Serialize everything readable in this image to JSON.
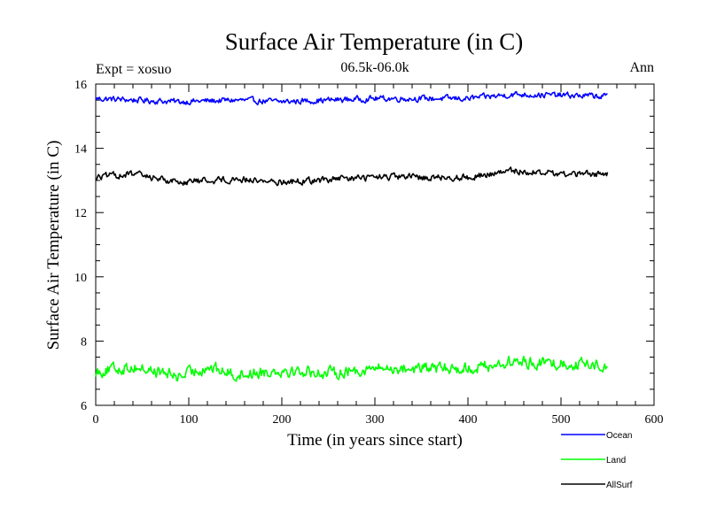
{
  "chart_data": {
    "type": "line",
    "title": "Surface Air Temperature (in C)",
    "subtitle_left": "Expt = xosuo",
    "subtitle_center": "06.5k-06.0k",
    "subtitle_right": "Ann",
    "xlabel": "Time (in years since start)",
    "ylabel": "Surface Air Temperature (in C)",
    "xlim": [
      0,
      600
    ],
    "ylim": [
      6,
      16
    ],
    "xticks": [
      0,
      100,
      200,
      300,
      400,
      500,
      600
    ],
    "yticks": [
      6,
      8,
      10,
      12,
      14,
      16
    ],
    "legend_position": "bottom-right outside",
    "n_years": 550,
    "series": [
      {
        "name": "Ocean",
        "color": "#0000ff",
        "mean": 15.55,
        "noise": 0.09,
        "trend": [
          [
            0,
            15.55
          ],
          [
            90,
            15.45
          ],
          [
            150,
            15.5
          ],
          [
            200,
            15.45
          ],
          [
            300,
            15.55
          ],
          [
            400,
            15.55
          ],
          [
            450,
            15.68
          ],
          [
            550,
            15.62
          ]
        ]
      },
      {
        "name": "Land",
        "color": "#00ff00",
        "mean": 7.1,
        "noise": 0.18,
        "trend": [
          [
            0,
            7.05
          ],
          [
            40,
            7.2
          ],
          [
            90,
            6.9
          ],
          [
            120,
            7.2
          ],
          [
            150,
            6.95
          ],
          [
            200,
            7.1
          ],
          [
            250,
            7.0
          ],
          [
            300,
            7.15
          ],
          [
            400,
            7.15
          ],
          [
            450,
            7.35
          ],
          [
            500,
            7.3
          ],
          [
            550,
            7.25
          ]
        ]
      },
      {
        "name": "AllSurf",
        "color": "#000000",
        "mean": 13.1,
        "noise": 0.1,
        "trend": [
          [
            0,
            13.1
          ],
          [
            40,
            13.2
          ],
          [
            90,
            12.95
          ],
          [
            150,
            13.05
          ],
          [
            200,
            12.95
          ],
          [
            300,
            13.1
          ],
          [
            400,
            13.1
          ],
          [
            450,
            13.3
          ],
          [
            500,
            13.2
          ],
          [
            550,
            13.2
          ]
        ]
      }
    ]
  }
}
